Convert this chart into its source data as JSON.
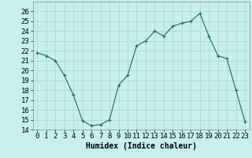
{
  "x": [
    0,
    1,
    2,
    3,
    4,
    5,
    6,
    7,
    8,
    9,
    10,
    11,
    12,
    13,
    14,
    15,
    16,
    17,
    18,
    19,
    20,
    21,
    22,
    23
  ],
  "y": [
    21.8,
    21.5,
    21.0,
    19.5,
    17.5,
    14.9,
    14.4,
    14.5,
    15.0,
    18.5,
    19.5,
    22.5,
    23.0,
    24.0,
    23.5,
    24.5,
    24.8,
    25.0,
    25.8,
    23.5,
    21.5,
    21.2,
    18.0,
    14.8
  ],
  "xlabel": "Humidex (Indice chaleur)",
  "ylim": [
    14,
    27
  ],
  "xlim": [
    -0.5,
    23.5
  ],
  "yticks": [
    14,
    15,
    16,
    17,
    18,
    19,
    20,
    21,
    22,
    23,
    24,
    25,
    26
  ],
  "xticks": [
    0,
    1,
    2,
    3,
    4,
    5,
    6,
    7,
    8,
    9,
    10,
    11,
    12,
    13,
    14,
    15,
    16,
    17,
    18,
    19,
    20,
    21,
    22,
    23
  ],
  "line_color": "#1a6b5a",
  "marker": "+",
  "bg_color": "#c8eeee",
  "grid_color": "#b0d8d8",
  "label_fontsize": 7,
  "tick_fontsize": 6.5
}
